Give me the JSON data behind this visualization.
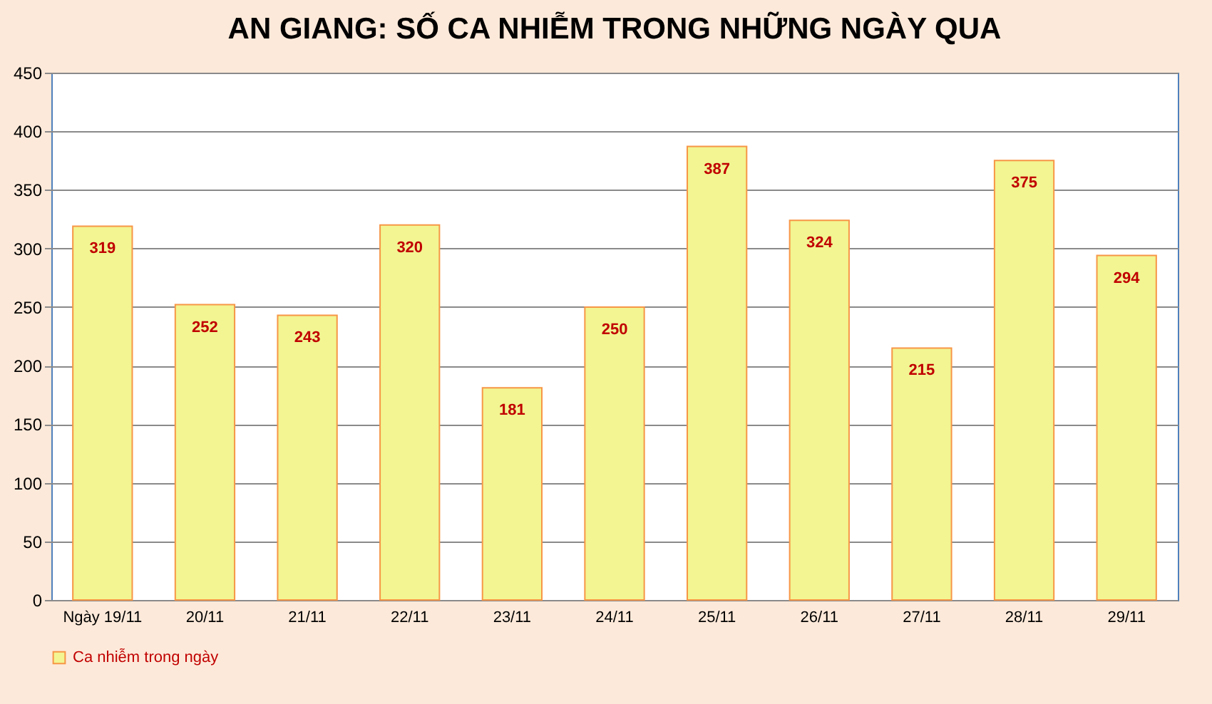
{
  "chart_data": {
    "type": "bar",
    "title": "AN GIANG: SỐ CA NHIỄM TRONG NHỮNG NGÀY QUA",
    "categories": [
      "Ngày 19/11",
      "20/11",
      "21/11",
      "22/11",
      "23/11",
      "24/11",
      "25/11",
      "26/11",
      "27/11",
      "28/11",
      "29/11"
    ],
    "series": [
      {
        "name": "Ca nhiễm trong ngày",
        "color": "#f2f592",
        "values": [
          319,
          252,
          243,
          320,
          181,
          250,
          387,
          324,
          215,
          375,
          294
        ]
      }
    ],
    "ylim": [
      0,
      450
    ],
    "yticks": [
      0,
      50,
      100,
      150,
      200,
      250,
      300,
      350,
      400,
      450
    ],
    "grid": "y",
    "data_labels": true,
    "legend": "bottom"
  }
}
